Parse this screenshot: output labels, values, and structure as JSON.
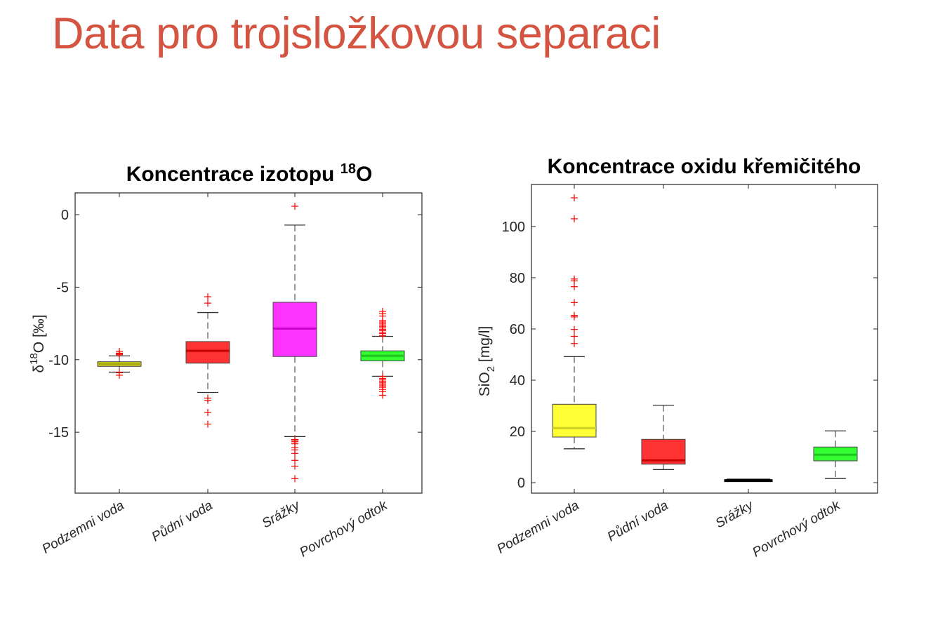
{
  "slide": {
    "title": "Data pro trojsložkovou separaci",
    "title_color": "#D35440"
  },
  "chart_data": [
    {
      "type": "box",
      "title": "Koncentrace izotopu ",
      "title_sup": "18",
      "title_tail": "O",
      "ylabel_pre": "δ",
      "ylabel_sup": "18",
      "ylabel_post": "O [‰]",
      "ylim": [
        -19.2,
        1.5
      ],
      "yticks": [
        0,
        -5,
        -10,
        -15
      ],
      "ytick_labels": [
        "0",
        "-5",
        "-10",
        "-15"
      ],
      "categories": [
        "Podzemni voda",
        "Půdní voda",
        "Srážky",
        "Povrchový odtok"
      ],
      "grid": false,
      "series": [
        {
          "color": "#D4D41E",
          "median_color": "#A8A810",
          "q1": -10.46,
          "median": -10.3,
          "q3": -10.14,
          "whisker_low": -10.86,
          "whisker_high": -9.74,
          "outliers": [
            -9.43,
            -9.55,
            -9.6,
            -9.66,
            -10.9,
            -11.07
          ]
        },
        {
          "color": "#FF3333",
          "median_color": "#C40000",
          "q1": -10.24,
          "median": -9.39,
          "q3": -8.75,
          "whisker_low": -12.26,
          "whisker_high": -6.75,
          "outliers": [
            -5.66,
            -6.1,
            -12.65,
            -12.8,
            -13.64,
            -14.44
          ]
        },
        {
          "color": "#FF33FF",
          "median_color": "#C800C8",
          "q1": -9.78,
          "median": -7.85,
          "q3": -6.04,
          "whisker_low": -15.3,
          "whisker_high": -0.72,
          "outliers": [
            0.58,
            -15.5,
            -15.6,
            -15.66,
            -15.8,
            -16.06,
            -16.22,
            -16.46,
            -16.94,
            -17.34,
            -18.2
          ]
        },
        {
          "color": "#33FF33",
          "median_color": "#1FC41F",
          "q1": -10.08,
          "median": -9.73,
          "q3": -9.39,
          "whisker_low": -11.14,
          "whisker_high": -8.39,
          "outliers": [
            -6.67,
            -6.83,
            -6.99,
            -7.3,
            -7.4,
            -7.5,
            -7.6,
            -7.7,
            -7.8,
            -7.9,
            -8.0,
            -8.1,
            -8.2,
            -8.35,
            -11.16,
            -11.3,
            -11.4,
            -11.5,
            -11.6,
            -11.7,
            -11.8,
            -11.9,
            -12.05,
            -12.2,
            -12.45
          ]
        }
      ]
    },
    {
      "type": "box",
      "title": "Koncentrace oxidu křemičitého",
      "ylabel_pre": "SiO",
      "ylabel_sub": "2",
      "ylabel_post": " [mg/l]",
      "ylim": [
        -4.1,
        116.4
      ],
      "yticks": [
        0,
        20,
        40,
        60,
        80,
        100
      ],
      "ytick_labels": [
        "0",
        "20",
        "40",
        "60",
        "80",
        "100"
      ],
      "categories": [
        "Podzemni voda",
        "Půdní voda",
        "Srážky",
        "Povrchový odtok"
      ],
      "grid": false,
      "series": [
        {
          "color": "#FFFF33",
          "median_color": "#CDCD22",
          "q1": 17.8,
          "median": 21.3,
          "q3": 30.6,
          "whisker_low": 13.2,
          "whisker_high": 49.2,
          "outliers": [
            111.2,
            103,
            79.5,
            78.8,
            76.5,
            70.3,
            65.3,
            64.7,
            59.8,
            57.1,
            54.3
          ]
        },
        {
          "color": "#FF3333",
          "median_color": "#C40000",
          "q1": 7.2,
          "median": 8.7,
          "q3": 16.9,
          "whisker_low": 5.1,
          "whisker_high": 30.2,
          "outliers": []
        },
        {
          "color": "#000000",
          "median_color": "#000000",
          "q1": 1.0,
          "median": 1.1,
          "q3": 1.2,
          "whisker_low": 1.0,
          "whisker_high": 1.2,
          "outliers": []
        },
        {
          "color": "#33FF33",
          "median_color": "#1FC41F",
          "q1": 8.5,
          "median": 10.9,
          "q3": 13.9,
          "whisker_low": 1.6,
          "whisker_high": 20.2,
          "outliers": []
        }
      ]
    }
  ]
}
